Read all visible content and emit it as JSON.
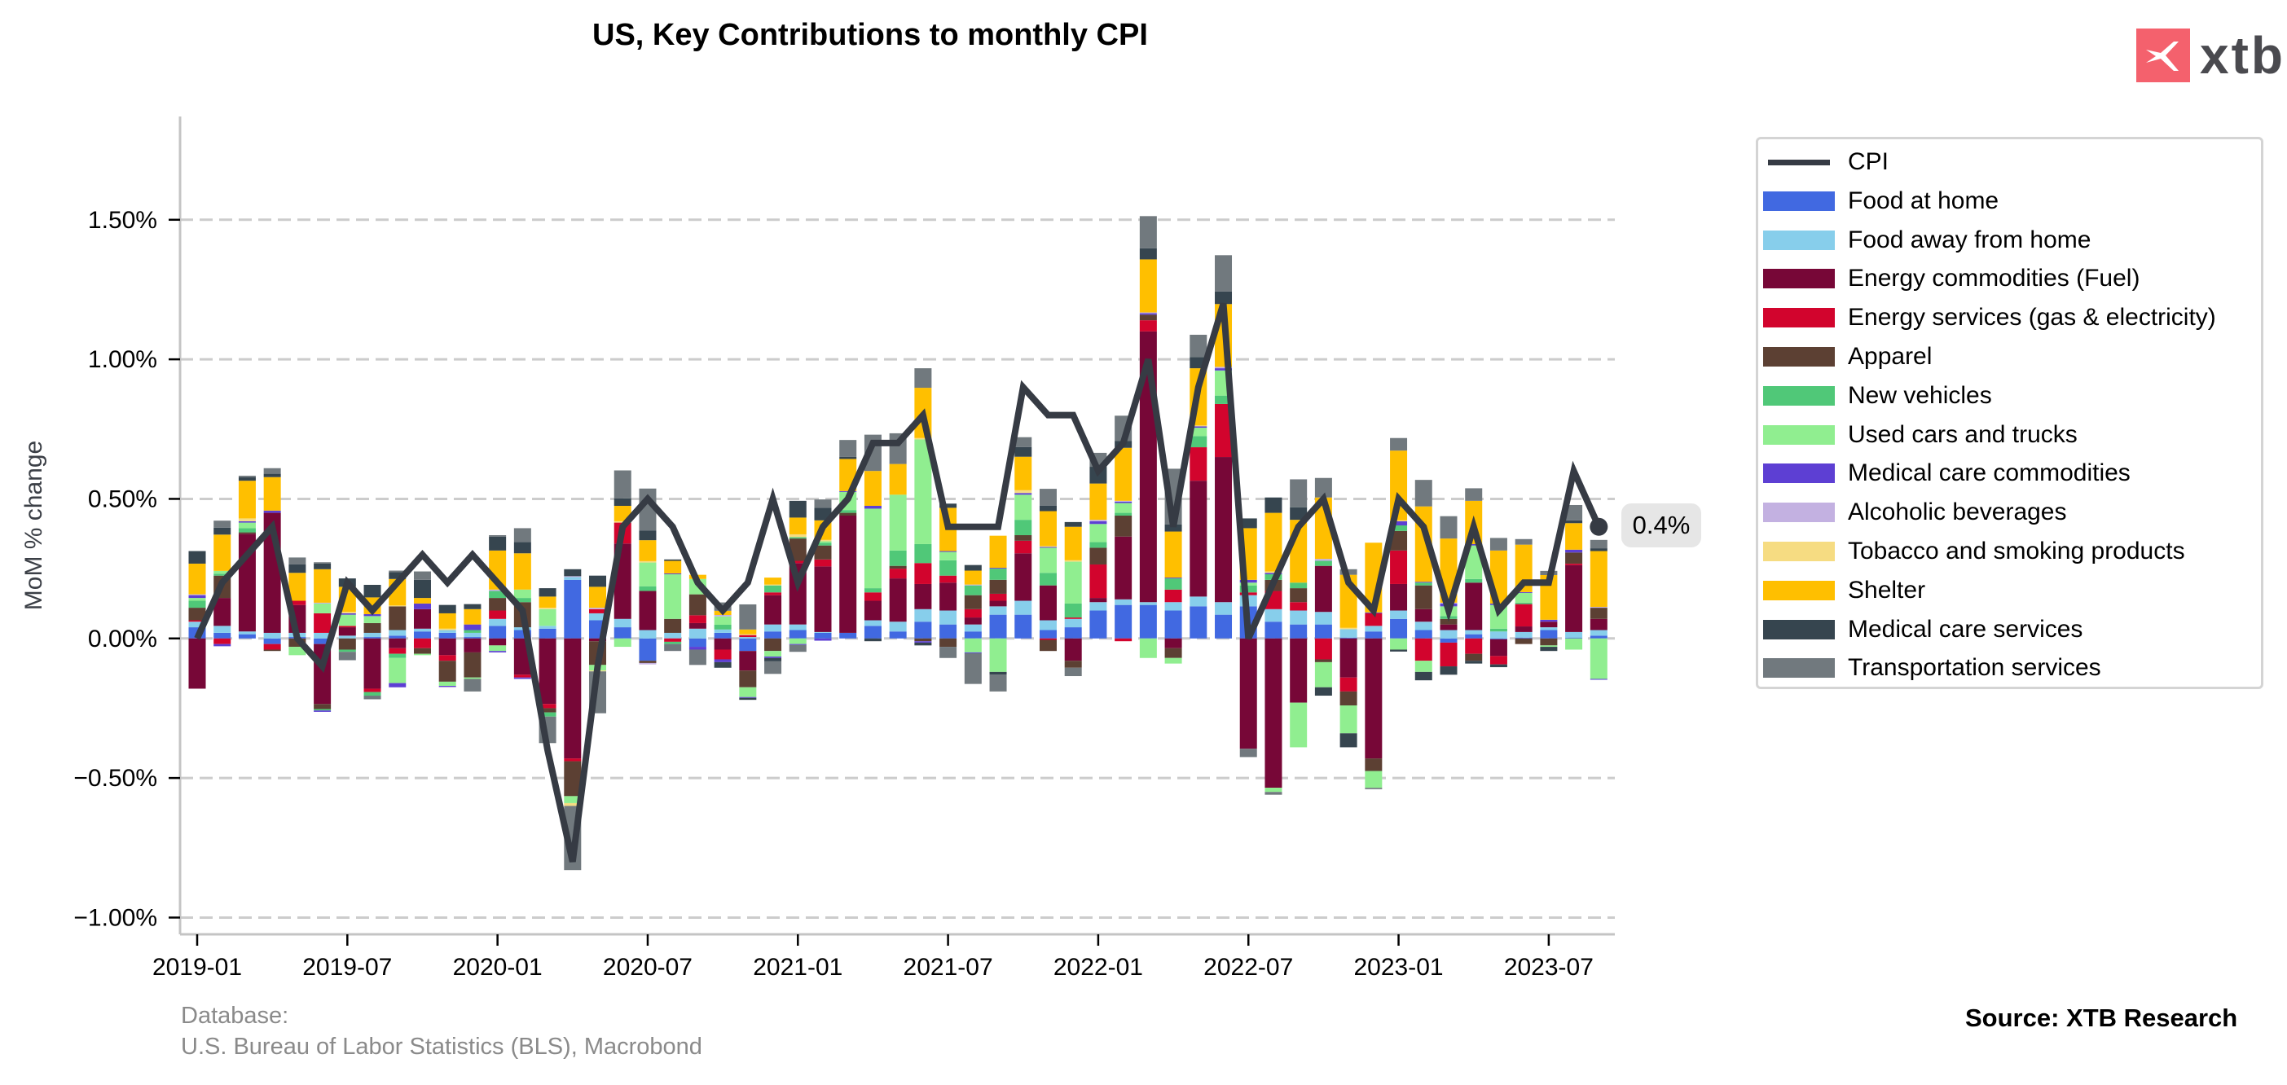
{
  "header": {
    "title": "US, Key Contributions to monthly CPI",
    "logo_text": "xtb",
    "logo_color": "#f4616d"
  },
  "footer": {
    "database_label": "Database:",
    "database_sources": "U.S. Bureau of Labor Statistics (BLS), Macrobond",
    "source": "Source: XTB Research"
  },
  "annotation": {
    "last_value_label": "0.4%"
  },
  "chart_data": {
    "type": "bar",
    "stacked": true,
    "title": "US, Key Contributions to monthly CPI",
    "xlabel": "",
    "ylabel": "MoM % change",
    "ylim": [
      -1.06,
      1.87
    ],
    "yticks": [
      -1.0,
      -0.5,
      0.0,
      0.5,
      1.0,
      1.5
    ],
    "ytick_labels": [
      "−1.00%",
      "−0.50%",
      "0.00%",
      "0.50%",
      "1.00%",
      "1.50%"
    ],
    "xtick_labels": [
      "2019-01",
      "2019-07",
      "2020-01",
      "2020-07",
      "2021-01",
      "2021-07",
      "2022-01",
      "2022-07",
      "2023-01",
      "2023-07"
    ],
    "xtick_indices": [
      0,
      6,
      12,
      18,
      24,
      30,
      36,
      42,
      48,
      54
    ],
    "grid": "horizontal dashed",
    "legend_position": "right",
    "categories": [
      "2019-01",
      "2019-02",
      "2019-03",
      "2019-04",
      "2019-05",
      "2019-06",
      "2019-07",
      "2019-08",
      "2019-09",
      "2019-10",
      "2019-11",
      "2019-12",
      "2020-01",
      "2020-02",
      "2020-03",
      "2020-04",
      "2020-05",
      "2020-06",
      "2020-07",
      "2020-08",
      "2020-09",
      "2020-10",
      "2020-11",
      "2020-12",
      "2021-01",
      "2021-02",
      "2021-03",
      "2021-04",
      "2021-05",
      "2021-06",
      "2021-07",
      "2021-08",
      "2021-09",
      "2021-10",
      "2021-11",
      "2021-12",
      "2022-01",
      "2022-02",
      "2022-03",
      "2022-04",
      "2022-05",
      "2022-06",
      "2022-07",
      "2022-08",
      "2022-09",
      "2022-10",
      "2022-11",
      "2022-12",
      "2023-01",
      "2023-02",
      "2023-03",
      "2023-04",
      "2023-05",
      "2023-06",
      "2023-07",
      "2023-08",
      "2023-09"
    ],
    "line": {
      "name": "CPI",
      "color": "#363b44",
      "values": [
        0.0,
        0.2,
        0.3,
        0.4,
        0.0,
        -0.1,
        0.2,
        0.1,
        0.2,
        0.3,
        0.2,
        0.3,
        0.2,
        0.1,
        -0.4,
        -0.8,
        -0.1,
        0.4,
        0.5,
        0.4,
        0.2,
        0.1,
        0.2,
        0.5,
        0.2,
        0.4,
        0.5,
        0.7,
        0.7,
        0.8,
        0.4,
        0.4,
        0.4,
        0.9,
        0.8,
        0.8,
        0.6,
        0.7,
        1.0,
        0.4,
        0.9,
        1.2,
        0.0,
        0.2,
        0.4,
        0.5,
        0.2,
        0.1,
        0.5,
        0.4,
        0.1,
        0.4,
        0.1,
        0.2,
        0.2,
        0.6,
        0.4
      ]
    },
    "series": [
      {
        "name": "Food at home",
        "color": "#4169e1",
        "values": [
          0.04,
          0.02,
          0.015,
          -0.02,
          0.005,
          -0.02,
          0.0,
          0.005,
          0.01,
          0.025,
          0.02,
          0.005,
          0.045,
          0.03,
          0.035,
          0.21,
          0.065,
          0.04,
          -0.08,
          0.0,
          -0.03,
          0.02,
          -0.045,
          0.025,
          0.03,
          0.02,
          0.02,
          0.045,
          0.025,
          0.06,
          0.05,
          0.025,
          0.085,
          0.085,
          0.03,
          0.04,
          0.1,
          0.12,
          0.12,
          0.1,
          0.115,
          0.085,
          0.115,
          0.06,
          0.05,
          0.05,
          0.003,
          0.025,
          0.07,
          0.03,
          -0.015,
          0.015,
          -0.003,
          0.003,
          0.03,
          0.003,
          0.01
        ]
      },
      {
        "name": "Food away from home",
        "color": "#87ceeb",
        "values": [
          0.02,
          0.025,
          0.01,
          0.02,
          0.015,
          0.02,
          0.01,
          0.015,
          0.02,
          0.01,
          0.01,
          0.015,
          0.025,
          0.01,
          0.01,
          0.01,
          0.025,
          0.03,
          0.03,
          0.02,
          0.035,
          0.012,
          0.005,
          0.025,
          0.02,
          0.003,
          0.0,
          0.02,
          0.035,
          0.045,
          0.05,
          0.025,
          0.03,
          0.05,
          0.035,
          0.03,
          0.03,
          0.02,
          0.01,
          0.03,
          0.035,
          0.045,
          0.04,
          0.045,
          0.05,
          0.045,
          0.03,
          0.02,
          0.03,
          0.03,
          0.03,
          0.015,
          0.025,
          0.02,
          0.01,
          0.02,
          0.02
        ]
      },
      {
        "name": "Energy commodities (Fuel)",
        "color": "#770737",
        "values": [
          -0.18,
          0.1,
          0.35,
          0.43,
          0.1,
          -0.215,
          0.03,
          -0.18,
          -0.035,
          0.07,
          -0.06,
          -0.05,
          -0.025,
          -0.13,
          -0.235,
          -0.43,
          -0.01,
          0.27,
          0.14,
          0.0,
          0.02,
          -0.04,
          -0.07,
          0.105,
          0.22,
          0.235,
          0.42,
          0.07,
          0.155,
          0.09,
          0.1,
          0.025,
          0.02,
          0.17,
          0.125,
          -0.08,
          0.015,
          0.225,
          0.97,
          -0.035,
          0.415,
          0.52,
          -0.395,
          -0.535,
          -0.23,
          0.165,
          -0.14,
          -0.43,
          0.095,
          0.045,
          0.02,
          0.17,
          -0.06,
          0.02,
          0.02,
          0.24,
          0.04
        ]
      },
      {
        "name": "Energy services (gas & electricity)",
        "color": "#d2042d",
        "values": [
          0.005,
          -0.02,
          0.0,
          -0.02,
          0.015,
          0.07,
          0.005,
          -0.012,
          -0.02,
          -0.035,
          -0.02,
          0.0,
          0.03,
          -0.01,
          -0.015,
          -0.01,
          0.015,
          0.075,
          0.0,
          -0.012,
          0.028,
          -0.035,
          0.007,
          0.01,
          0.008,
          0.025,
          0.0,
          0.03,
          0.035,
          0.075,
          0.025,
          0.03,
          0.025,
          0.045,
          -0.005,
          0.005,
          0.12,
          -0.01,
          0.04,
          0.045,
          0.12,
          0.19,
          0.01,
          0.065,
          0.03,
          -0.075,
          -0.05,
          0.045,
          0.12,
          -0.08,
          -0.085,
          -0.055,
          -0.03,
          0.08,
          0.0,
          0.005,
          0.0
        ]
      },
      {
        "name": "Apparel",
        "color": "#5c4033",
        "values": [
          0.045,
          0.08,
          0.005,
          -0.005,
          -0.03,
          -0.018,
          -0.04,
          0.035,
          0.085,
          -0.02,
          -0.075,
          -0.09,
          0.045,
          0.09,
          -0.015,
          -0.125,
          -0.085,
          0.0,
          -0.008,
          0.05,
          0.075,
          0.0,
          -0.06,
          -0.045,
          0.08,
          0.05,
          0.01,
          0.0,
          0.01,
          -0.01,
          -0.03,
          0.05,
          0.05,
          0.02,
          -0.04,
          -0.025,
          0.06,
          0.075,
          0.02,
          -0.035,
          0.0,
          0.0,
          0.0,
          0.04,
          0.05,
          -0.01,
          -0.05,
          -0.045,
          0.07,
          0.085,
          0.02,
          -0.025,
          0.0,
          -0.02,
          -0.025,
          0.04,
          0.04
        ]
      },
      {
        "name": "New vehicles",
        "color": "#50c878",
        "values": [
          0.025,
          0.007,
          0.015,
          0.0,
          0.0,
          -0.005,
          -0.008,
          -0.013,
          -0.015,
          0.0,
          0.0,
          0.01,
          0.025,
          0.015,
          -0.015,
          0.0,
          0.0,
          0.0,
          0.017,
          -0.008,
          0.0,
          0.017,
          0.0,
          0.025,
          0.005,
          0.01,
          0.01,
          0.015,
          0.055,
          0.068,
          0.055,
          0.035,
          0.04,
          0.055,
          0.045,
          0.05,
          0.02,
          0.01,
          0.0,
          0.04,
          0.04,
          0.03,
          0.025,
          0.02,
          0.02,
          0.018,
          0.0,
          0.0,
          0.02,
          0.01,
          0.01,
          0.013,
          0.01,
          0.005,
          0.0,
          0.0,
          0.0
        ]
      },
      {
        "name": "Used cars and trucks",
        "color": "#90ee90",
        "values": [
          0.01,
          0.01,
          0.02,
          0.0,
          -0.03,
          0.035,
          0.04,
          0.025,
          -0.09,
          -0.005,
          -0.015,
          -0.005,
          -0.02,
          0.03,
          0.06,
          -0.025,
          -0.02,
          -0.03,
          0.085,
          0.16,
          0.055,
          0.03,
          -0.035,
          -0.02,
          -0.02,
          0.005,
          0.065,
          0.285,
          0.2,
          0.375,
          0.03,
          -0.05,
          -0.12,
          0.09,
          0.09,
          0.15,
          0.065,
          0.035,
          -0.07,
          -0.02,
          0.03,
          0.09,
          0.01,
          -0.015,
          -0.16,
          -0.09,
          -0.1,
          -0.06,
          -0.04,
          -0.04,
          0.035,
          0.12,
          0.085,
          0.035,
          -0.005,
          -0.04,
          -0.145
        ]
      },
      {
        "name": "Medical care commodities",
        "color": "#5d3fd3",
        "values": [
          0.01,
          -0.008,
          0.005,
          0.008,
          0.0,
          -0.005,
          0.005,
          0.007,
          -0.015,
          0.02,
          -0.003,
          0.02,
          -0.005,
          -0.005,
          0.0,
          0.0,
          0.0,
          0.0,
          0.0,
          0.003,
          -0.01,
          -0.01,
          -0.003,
          -0.005,
          -0.003,
          -0.008,
          0.003,
          0.01,
          0.0,
          -0.005,
          0.003,
          -0.003,
          0.003,
          0.006,
          0.003,
          0.0,
          0.01,
          0.005,
          0.005,
          0.003,
          0.005,
          0.008,
          0.01,
          0.005,
          0.0,
          0.0,
          0.0,
          0.003,
          0.015,
          0.003,
          0.01,
          0.005,
          0.005,
          0.003,
          0.007,
          0.01,
          -0.003
        ]
      },
      {
        "name": "Alcoholic beverages",
        "color": "#c3b1e1",
        "values": [
          0.003,
          0.0,
          0.0,
          0.0,
          0.0,
          0.003,
          0.0,
          0.0,
          0.0,
          0.0,
          -0.003,
          0.0,
          0.005,
          0.0,
          0.0,
          0.003,
          0.005,
          0.0,
          -0.005,
          0.0,
          0.0,
          0.005,
          0.0,
          0.0,
          0.0,
          0.0,
          0.0,
          0.0,
          0.0,
          0.0,
          0.0,
          0.003,
          0.0,
          0.0,
          0.0,
          0.0,
          0.005,
          0.003,
          0.003,
          0.0,
          0.0,
          0.005,
          0.0,
          0.0,
          0.0,
          0.007,
          0.0,
          0.0,
          0.0,
          0.0,
          0.003,
          0.0,
          0.0,
          0.0,
          0.0,
          0.0,
          0.003
        ]
      },
      {
        "name": "Tobacco and smoking products",
        "color": "#f6dc82",
        "values": [
          0.0,
          0.0,
          0.01,
          0.0,
          0.0,
          0.0,
          0.005,
          0.0,
          0.003,
          0.0,
          0.005,
          0.0,
          0.0,
          0.0,
          0.005,
          -0.01,
          -0.003,
          0.005,
          0.005,
          0.0,
          0.0,
          0.0,
          0.003,
          0.003,
          0.01,
          0.005,
          0.0,
          0.0,
          0.0,
          0.005,
          0.0,
          0.0,
          0.0,
          0.01,
          0.003,
          0.005,
          0.0,
          0.0,
          0.0,
          0.0,
          0.003,
          0.0,
          0.0,
          0.005,
          0.0,
          0.0,
          0.005,
          0.0,
          0.003,
          0.0,
          0.0,
          0.0,
          0.0,
          0.0,
          0.0,
          0.0,
          0.0
        ]
      },
      {
        "name": "Shelter",
        "color": "#ffbf00",
        "values": [
          0.11,
          0.13,
          0.135,
          0.12,
          0.1,
          0.12,
          0.09,
          0.06,
          0.095,
          0.02,
          0.055,
          0.055,
          0.14,
          0.13,
          0.04,
          0.0,
          0.075,
          0.055,
          0.075,
          0.045,
          0.015,
          0.015,
          0.017,
          0.025,
          0.06,
          0.07,
          0.115,
          0.125,
          0.11,
          0.18,
          0.155,
          0.05,
          0.115,
          0.12,
          0.125,
          0.12,
          0.13,
          0.19,
          0.19,
          0.165,
          0.205,
          0.225,
          0.185,
          0.21,
          0.225,
          0.22,
          0.19,
          0.25,
          0.25,
          0.27,
          0.23,
          0.155,
          0.19,
          0.17,
          0.16,
          0.095,
          0.2
        ]
      },
      {
        "name": "Medical care services",
        "color": "#36454f",
        "values": [
          0.045,
          0.025,
          0.013,
          0.012,
          0.03,
          0.02,
          0.03,
          0.045,
          0.025,
          0.065,
          0.03,
          0.018,
          0.05,
          0.04,
          0.03,
          0.025,
          0.04,
          0.027,
          0.035,
          0.005,
          0.0,
          -0.02,
          -0.007,
          -0.012,
          0.06,
          0.045,
          0.008,
          -0.01,
          0.0,
          -0.01,
          0.015,
          0.02,
          -0.01,
          0.035,
          0.02,
          0.017,
          0.06,
          0.025,
          0.04,
          0.025,
          0.04,
          0.045,
          0.035,
          0.055,
          0.045,
          -0.03,
          -0.05,
          0.0,
          -0.007,
          -0.03,
          -0.03,
          -0.01,
          -0.01,
          0.0,
          -0.015,
          0.01,
          0.01
        ]
      },
      {
        "name": "Transportation services",
        "color": "#71797e",
        "values": [
          0.0,
          0.025,
          0.005,
          0.02,
          0.025,
          0.005,
          -0.03,
          -0.013,
          0.005,
          0.03,
          0.0,
          -0.045,
          0.005,
          0.05,
          -0.095,
          -0.23,
          -0.15,
          0.1,
          0.15,
          -0.025,
          -0.055,
          0.03,
          0.09,
          -0.045,
          -0.025,
          0.03,
          0.06,
          0.13,
          0.11,
          0.07,
          -0.04,
          -0.11,
          -0.06,
          0.035,
          0.06,
          -0.03,
          0.05,
          0.09,
          0.115,
          0.2,
          0.08,
          0.13,
          -0.03,
          -0.01,
          0.1,
          0.07,
          0.02,
          -0.005,
          0.045,
          0.095,
          0.08,
          0.045,
          0.045,
          0.02,
          0.015,
          0.055,
          0.03
        ]
      }
    ]
  }
}
